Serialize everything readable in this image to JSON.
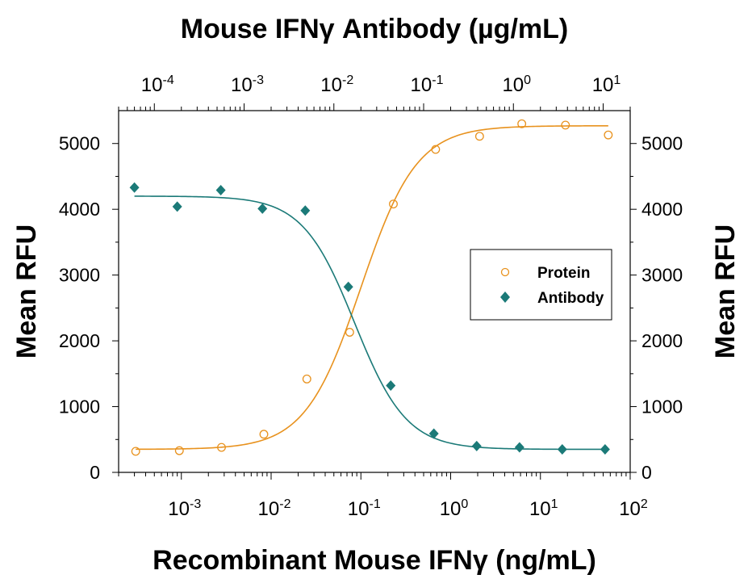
{
  "chart_data": {
    "type": "scatter",
    "title": "",
    "xlabel": "Recombinant Mouse IFNγ (ng/mL)",
    "x2label": "Mouse IFNγ Antibody (µg/mL)",
    "ylabel": "Mean RFU",
    "y2label": "Mean RFU",
    "x_scale": "log",
    "xlim": [
      0.0002,
      100
    ],
    "x2lim": [
      4e-05,
      20
    ],
    "ylim": [
      0,
      5500
    ],
    "x_ticks": [
      {
        "value": 0.001,
        "base": "10",
        "exp": "-3"
      },
      {
        "value": 0.01,
        "base": "10",
        "exp": "-2"
      },
      {
        "value": 0.1,
        "base": "10",
        "exp": "-1"
      },
      {
        "value": 1,
        "base": "10",
        "exp": "0"
      },
      {
        "value": 10,
        "base": "10",
        "exp": "1"
      },
      {
        "value": 100,
        "base": "10",
        "exp": "2"
      }
    ],
    "x2_ticks": [
      {
        "value": 0.0001,
        "base": "10",
        "exp": "-4"
      },
      {
        "value": 0.001,
        "base": "10",
        "exp": "-3"
      },
      {
        "value": 0.01,
        "base": "10",
        "exp": "-2"
      },
      {
        "value": 0.1,
        "base": "10",
        "exp": "-1"
      },
      {
        "value": 1,
        "base": "10",
        "exp": "0"
      },
      {
        "value": 10,
        "base": "10",
        "exp": "1"
      }
    ],
    "y_ticks": [
      "0",
      "1000",
      "2000",
      "3000",
      "4000",
      "5000"
    ],
    "grid": false,
    "legend_position": "right",
    "series": [
      {
        "name": "Protein",
        "axis": "bottom",
        "color": "#e8921e",
        "marker": "open-circle",
        "x": [
          0.00031,
          0.00095,
          0.0028,
          0.0083,
          0.025,
          0.075,
          0.23,
          0.68,
          2.1,
          6.2,
          19,
          57
        ],
        "y": [
          320,
          330,
          380,
          580,
          1420,
          2130,
          4080,
          4910,
          5110,
          5300,
          5280,
          5130
        ],
        "fit": {
          "bottom": 350,
          "top": 5270,
          "ec50": 0.1,
          "hill": 1.4
        }
      },
      {
        "name": "Antibody",
        "axis": "top",
        "color": "#1b7a78",
        "marker": "filled-diamond",
        "x": [
          6e-05,
          0.00018,
          0.00055,
          0.0016,
          0.0048,
          0.0145,
          0.043,
          0.13,
          0.39,
          1.17,
          3.5,
          10.5
        ],
        "y": [
          4330,
          4040,
          4290,
          4010,
          3980,
          2820,
          1320,
          590,
          400,
          380,
          350,
          350
        ],
        "fit": {
          "bottom": 350,
          "top": 4200,
          "ec50": 0.017,
          "hill": 1.5
        }
      }
    ]
  }
}
